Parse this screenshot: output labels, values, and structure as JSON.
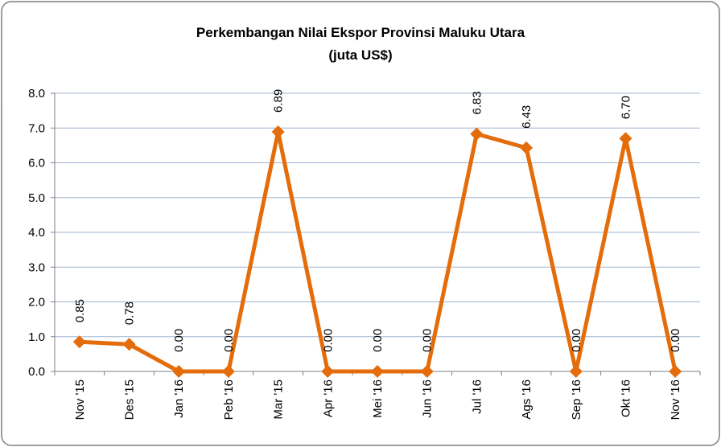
{
  "chart_data": {
    "type": "line",
    "title": "Perkembangan Nilai Ekspor Provinsi Maluku Utara",
    "subtitle": "(juta US$)",
    "categories": [
      "Nov '15",
      "Des '15",
      "Jan '16",
      "Peb '16",
      "Mar '15",
      "Apr '16",
      "Mei '16",
      "Jun '16",
      "Jul '16",
      "Ags '16",
      "Sep '16",
      "Okt '16",
      "Nov '16"
    ],
    "values": [
      0.85,
      0.78,
      0,
      0,
      6.89,
      0,
      0,
      0,
      6.83,
      6.43,
      0,
      6.7,
      0
    ],
    "value_labels": [
      "0.85",
      "0.78",
      "0.00",
      "0.00",
      "6.89",
      "0.00",
      "0.00",
      "0.00",
      "6.83",
      "6.43",
      "0.00",
      "6.70",
      "0.00"
    ],
    "color": "#e46c0a",
    "ylim": [
      0,
      8
    ],
    "yticks": [
      {
        "value": 0,
        "label": "0.0"
      },
      {
        "value": 1,
        "label": "1.0"
      },
      {
        "value": 2,
        "label": "2.0"
      },
      {
        "value": 3,
        "label": "3.0"
      },
      {
        "value": 4,
        "label": "4.0"
      },
      {
        "value": 5,
        "label": "5.0"
      },
      {
        "value": 6,
        "label": "6.0"
      },
      {
        "value": 7,
        "label": "7.0"
      },
      {
        "value": 8,
        "label": "8.0"
      }
    ],
    "grid": true
  }
}
